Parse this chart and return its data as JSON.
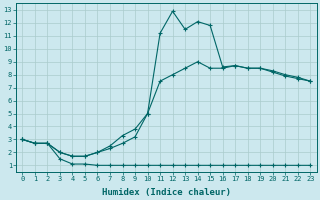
{
  "xlabel": "Humidex (Indice chaleur)",
  "bg_color": "#cce8ee",
  "grid_color": "#aacccc",
  "line_color": "#006666",
  "xlim": [
    -0.5,
    23.5
  ],
  "ylim": [
    0.5,
    13.5
  ],
  "xticks": [
    0,
    1,
    2,
    3,
    4,
    5,
    6,
    7,
    8,
    9,
    10,
    11,
    12,
    13,
    14,
    15,
    16,
    17,
    18,
    19,
    20,
    21,
    22,
    23
  ],
  "yticks": [
    1,
    2,
    3,
    4,
    5,
    6,
    7,
    8,
    9,
    10,
    11,
    12,
    13
  ],
  "line1_x": [
    0,
    1,
    2,
    3,
    4,
    5,
    6,
    7,
    8,
    9,
    10,
    11,
    12,
    13,
    14,
    15,
    16,
    17,
    18,
    19,
    20,
    21,
    22,
    23
  ],
  "line1_y": [
    3.0,
    2.7,
    2.7,
    1.5,
    1.1,
    1.1,
    1.0,
    1.0,
    1.0,
    1.0,
    1.0,
    1.0,
    1.0,
    1.0,
    1.0,
    1.0,
    1.0,
    1.0,
    1.0,
    1.0,
    1.0,
    1.0,
    1.0,
    1.0
  ],
  "line2_x": [
    0,
    1,
    2,
    3,
    4,
    5,
    6,
    7,
    8,
    9,
    10,
    11,
    12,
    13,
    14,
    15,
    16,
    17,
    18,
    19,
    20,
    21,
    22,
    23
  ],
  "line2_y": [
    3.0,
    2.7,
    2.7,
    2.0,
    1.7,
    1.7,
    2.0,
    2.3,
    2.7,
    3.2,
    5.0,
    7.5,
    8.0,
    8.5,
    9.0,
    8.5,
    8.5,
    8.7,
    8.5,
    8.5,
    8.2,
    7.9,
    7.7,
    7.5
  ],
  "line3_x": [
    0,
    1,
    2,
    3,
    4,
    5,
    6,
    7,
    8,
    9,
    10,
    11,
    12,
    13,
    14,
    15,
    16,
    17,
    18,
    19,
    20,
    21,
    22,
    23
  ],
  "line3_y": [
    3.0,
    2.7,
    2.7,
    2.0,
    1.7,
    1.7,
    2.0,
    2.5,
    3.3,
    3.8,
    5.0,
    11.2,
    12.9,
    11.5,
    12.1,
    11.8,
    8.6,
    8.7,
    8.5,
    8.5,
    8.3,
    8.0,
    7.8,
    7.5
  ],
  "marker": "+",
  "tick_fontsize": 5.0,
  "xlabel_fontsize": 6.5
}
